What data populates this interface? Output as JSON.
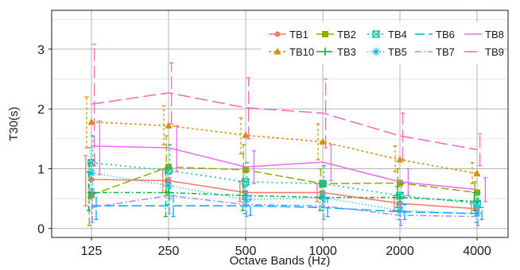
{
  "chart_data": {
    "type": "line",
    "xlabel": "Octave Bands (Hz)",
    "ylabel": "T30(s)",
    "categories": [
      "125",
      "250",
      "500",
      "1000",
      "2000",
      "4000"
    ],
    "yticks": [
      "0",
      "1",
      "2",
      "3"
    ],
    "ylim": [
      -0.15,
      3.65
    ],
    "grid": true,
    "legend_position": "top-right",
    "series": [
      {
        "name": "TB1",
        "color": "#f8766d",
        "dash": "",
        "marker": "circle",
        "values": [
          0.82,
          0.8,
          0.6,
          0.6,
          0.42,
          0.33
        ],
        "err": [
          [
            0.38,
            1.22
          ],
          [
            0.6,
            1.0
          ],
          [
            0.45,
            0.78
          ],
          [
            0.45,
            0.75
          ],
          [
            0.3,
            0.55
          ],
          [
            0.25,
            0.42
          ]
        ]
      },
      {
        "name": "TB10",
        "color": "#d39200",
        "dash": "3,3",
        "marker": "triangle",
        "values": [
          1.78,
          1.72,
          1.56,
          1.45,
          1.15,
          0.92
        ],
        "err": [
          [
            1.35,
            2.2
          ],
          [
            1.4,
            2.05
          ],
          [
            1.25,
            1.85
          ],
          [
            1.15,
            1.75
          ],
          [
            0.95,
            1.38
          ],
          [
            0.75,
            1.1
          ]
        ]
      },
      {
        "name": "TB2",
        "color": "#93aa00",
        "dash": "10,4",
        "marker": "square",
        "values": [
          0.56,
          1.03,
          0.98,
          0.75,
          0.76,
          0.6
        ],
        "err": [
          [
            0.05,
            1.1
          ],
          [
            0.55,
            1.55
          ],
          [
            0.6,
            1.4
          ],
          [
            0.5,
            1.0
          ],
          [
            0.55,
            1.0
          ],
          [
            0.45,
            0.78
          ]
        ]
      },
      {
        "name": "TB3",
        "color": "#00ba38",
        "dash": "6,3,2,3",
        "marker": "plus",
        "values": [
          0.6,
          0.6,
          0.55,
          0.52,
          0.52,
          0.45
        ],
        "err": [
          [
            0.3,
            0.95
          ],
          [
            0.2,
            1.0
          ],
          [
            0.3,
            0.8
          ],
          [
            0.3,
            0.75
          ],
          [
            0.35,
            0.7
          ],
          [
            0.3,
            0.6
          ]
        ]
      },
      {
        "name": "TB4",
        "color": "#00c19f",
        "dash": "2,4",
        "marker": "square-x",
        "values": [
          1.1,
          0.97,
          0.78,
          0.75,
          0.55,
          0.42
        ],
        "err": [
          [
            0.65,
            1.55
          ],
          [
            0.5,
            1.4
          ],
          [
            0.45,
            1.1
          ],
          [
            0.45,
            1.05
          ],
          [
            0.35,
            0.75
          ],
          [
            0.25,
            0.6
          ]
        ]
      },
      {
        "name": "TB5",
        "color": "#00b9e3",
        "dash": "1,3",
        "marker": "asterisk",
        "values": [
          0.93,
          0.72,
          0.48,
          0.52,
          0.3,
          0.25
        ],
        "err": [
          [
            0.5,
            1.35
          ],
          [
            0.4,
            1.05
          ],
          [
            0.25,
            0.7
          ],
          [
            0.3,
            0.75
          ],
          [
            0.15,
            0.45
          ],
          [
            0.1,
            0.4
          ]
        ]
      },
      {
        "name": "TB6",
        "color": "#00a9ff",
        "dash": "12,5",
        "marker": "none",
        "values": [
          0.38,
          0.38,
          0.38,
          0.35,
          0.28,
          0.25
        ],
        "err": [
          [
            0.15,
            0.6
          ],
          [
            0.2,
            0.55
          ],
          [
            0.22,
            0.55
          ],
          [
            0.2,
            0.5
          ],
          [
            0.15,
            0.4
          ],
          [
            0.15,
            0.35
          ]
        ]
      },
      {
        "name": "TB7",
        "color": "#9590ff",
        "dash": "8,3,2,3",
        "marker": "none",
        "values": [
          0.35,
          0.55,
          0.4,
          0.38,
          0.22,
          0.2
        ],
        "err": [
          [
            0.1,
            0.62
          ],
          [
            0.25,
            0.85
          ],
          [
            0.2,
            0.6
          ],
          [
            0.15,
            0.6
          ],
          [
            0.05,
            0.4
          ],
          [
            0.05,
            0.35
          ]
        ]
      },
      {
        "name": "TB8",
        "color": "#e76bf3",
        "dash": "",
        "marker": "none",
        "values": [
          1.38,
          1.35,
          1.03,
          1.11,
          0.78,
          0.65
        ],
        "err": [
          [
            0.9,
            1.8
          ],
          [
            0.95,
            1.72
          ],
          [
            0.75,
            1.3
          ],
          [
            0.8,
            1.4
          ],
          [
            0.55,
            1.0
          ],
          [
            0.45,
            0.85
          ]
        ]
      },
      {
        "name": "TB9",
        "color": "#ff62bc",
        "dash": "16,6",
        "marker": "none",
        "values": [
          2.08,
          2.27,
          2.02,
          1.93,
          1.55,
          1.32
        ],
        "err": [
          [
            1.05,
            3.08
          ],
          [
            1.75,
            2.77
          ],
          [
            1.5,
            2.52
          ],
          [
            1.35,
            2.5
          ],
          [
            1.15,
            1.93
          ],
          [
            1.05,
            1.58
          ]
        ]
      }
    ]
  }
}
